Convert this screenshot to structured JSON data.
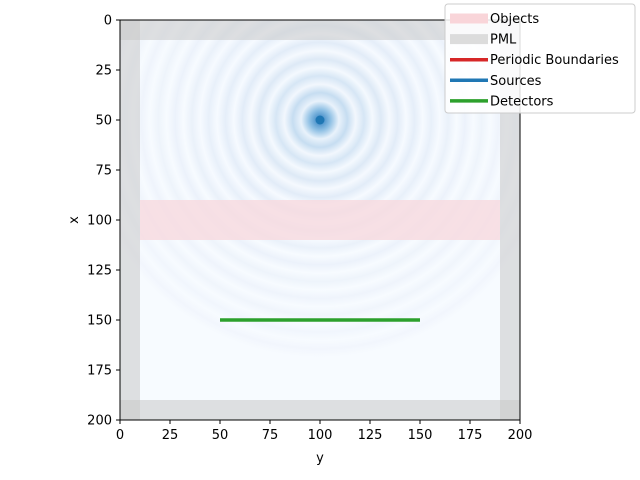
{
  "chart_data": {
    "type": "heatmap",
    "title": "",
    "xlabel": "y",
    "ylabel": "x",
    "xlim": [
      0,
      200
    ],
    "ylim": [
      200,
      0
    ],
    "xticks": [
      0,
      25,
      50,
      75,
      100,
      125,
      150,
      175,
      200
    ],
    "yticks": [
      0,
      25,
      50,
      75,
      100,
      125,
      150,
      175,
      200
    ],
    "grid": false,
    "legend_position": "upper-right",
    "field": {
      "description_colormap": "Blues",
      "source_center": {
        "y": 100,
        "x": 50
      }
    },
    "objects": [
      {
        "name": "Objects",
        "y_range": [
          10,
          190
        ],
        "x_range": [
          90,
          110
        ],
        "color": "#f7d9de"
      }
    ],
    "pml": {
      "name": "PML",
      "thickness": 10,
      "color": "#c8c8c8"
    },
    "sources": [
      {
        "name": "Sources",
        "y": 100,
        "x": 50,
        "color": "#1f77b4"
      }
    ],
    "detectors": [
      {
        "name": "Detectors",
        "y_range": [
          50,
          150
        ],
        "x": 150,
        "color": "#2ca02c"
      }
    ],
    "legend": [
      {
        "label": "Objects",
        "color": "#f9d5d9",
        "kind": "patch"
      },
      {
        "label": "PML",
        "color": "#dcdcdc",
        "kind": "patch"
      },
      {
        "label": "Periodic Boundaries",
        "color": "#d62728",
        "kind": "line"
      },
      {
        "label": "Sources",
        "color": "#1f77b4",
        "kind": "line"
      },
      {
        "label": "Detectors",
        "color": "#2ca02c",
        "kind": "line"
      }
    ]
  }
}
